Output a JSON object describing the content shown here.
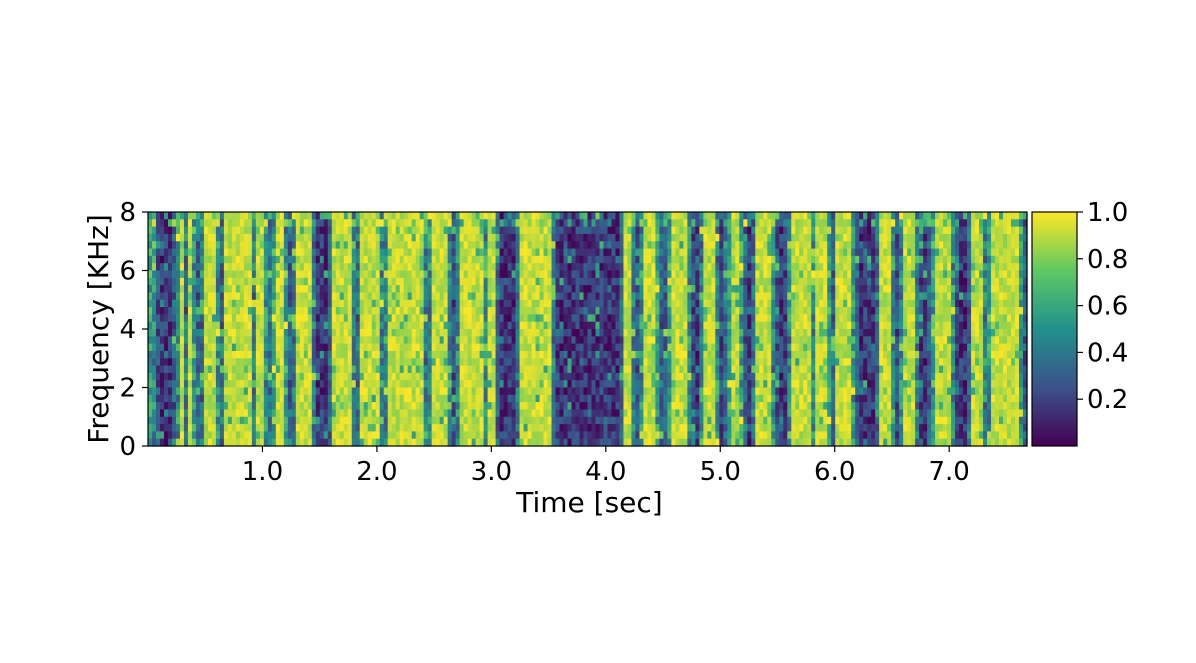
{
  "chart_data": {
    "type": "heatmap",
    "title": "",
    "xlabel": "Time [sec]",
    "ylabel": "Frequency [KHz]",
    "xlim": [
      0.0,
      7.68
    ],
    "ylim": [
      0,
      8
    ],
    "x_ticks": [
      1.0,
      2.0,
      3.0,
      4.0,
      5.0,
      6.0,
      7.0
    ],
    "x_tick_labels": [
      "1.0",
      "2.0",
      "3.0",
      "4.0",
      "5.0",
      "6.0",
      "7.0"
    ],
    "y_ticks": [
      0,
      2,
      4,
      6,
      8
    ],
    "y_tick_labels": [
      "0",
      "2",
      "4",
      "6",
      "8"
    ],
    "colormap": "viridis",
    "colorbar": {
      "range": [
        0.0,
        1.0
      ],
      "ticks": [
        0.2,
        0.4,
        0.6,
        0.8,
        1.0
      ],
      "tick_labels": [
        "0.2",
        "0.4",
        "0.6",
        "0.8",
        "1.0"
      ],
      "colors": [
        "#440154",
        "#3b528b",
        "#21918c",
        "#5ec962",
        "#fde725"
      ]
    },
    "grid": false,
    "bright_segments_sec": [
      [
        0.02,
        0.04
      ],
      [
        0.27,
        0.3
      ],
      [
        0.36,
        0.4
      ],
      [
        0.5,
        0.6
      ],
      [
        0.68,
        0.9
      ],
      [
        0.95,
        1.02
      ],
      [
        1.1,
        1.2
      ],
      [
        1.3,
        1.42
      ],
      [
        1.62,
        1.78
      ],
      [
        1.86,
        2.02
      ],
      [
        2.1,
        2.3
      ],
      [
        2.32,
        2.4
      ],
      [
        2.48,
        2.62
      ],
      [
        2.72,
        2.92
      ],
      [
        2.96,
        3.02
      ],
      [
        3.26,
        3.4
      ],
      [
        3.4,
        3.52
      ],
      [
        4.17,
        4.22
      ],
      [
        4.32,
        4.45
      ],
      [
        4.56,
        4.72
      ],
      [
        4.86,
        4.96
      ],
      [
        5.08,
        5.18
      ],
      [
        5.32,
        5.45
      ],
      [
        5.62,
        5.78
      ],
      [
        5.82,
        5.95
      ],
      [
        6.02,
        6.16
      ],
      [
        6.4,
        6.5
      ],
      [
        6.6,
        6.7
      ],
      [
        6.86,
        7.02
      ],
      [
        7.2,
        7.3
      ],
      [
        7.36,
        7.62
      ]
    ]
  }
}
